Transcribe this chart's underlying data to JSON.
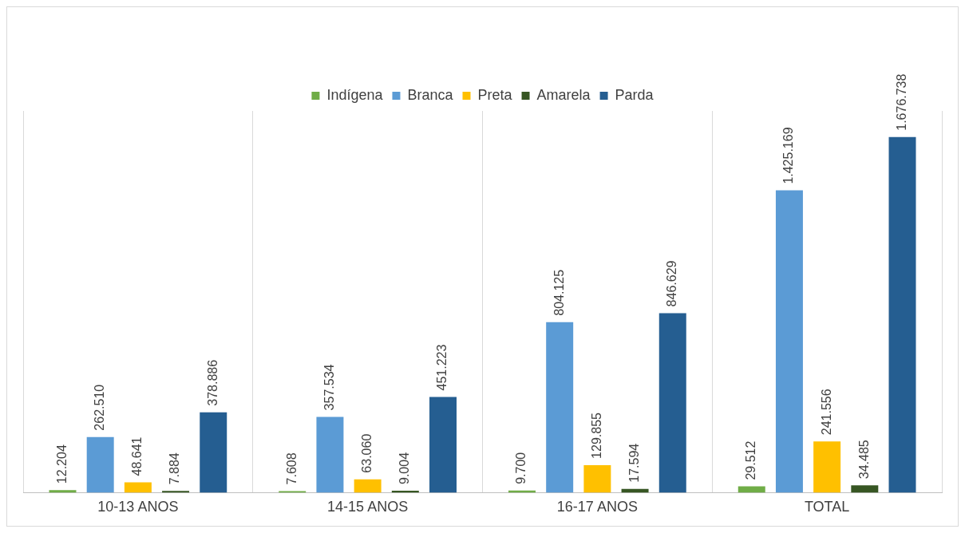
{
  "chart_data": {
    "type": "bar",
    "categories": [
      "10-13 ANOS",
      "14-15 ANOS",
      "16-17 ANOS",
      "TOTAL"
    ],
    "series": [
      {
        "name": "Indígena",
        "color": "#70ad47",
        "values": [
          12204,
          7608,
          9700,
          29512
        ],
        "value_labels": [
          "12.204",
          "7.608",
          "9.700",
          "29.512"
        ]
      },
      {
        "name": "Branca",
        "color": "#5b9bd5",
        "values": [
          262510,
          357534,
          804125,
          1425169
        ],
        "value_labels": [
          "262.510",
          "357.534",
          "804.125",
          "1.425.169"
        ]
      },
      {
        "name": "Preta",
        "color": "#ffc000",
        "values": [
          48641,
          63060,
          129855,
          241556
        ],
        "value_labels": [
          "48.641",
          "63.060",
          "129.855",
          "241.556"
        ]
      },
      {
        "name": "Amarela",
        "color": "#375623",
        "values": [
          7884,
          9004,
          17594,
          34485
        ],
        "value_labels": [
          "7.884",
          "9.004",
          "17.594",
          "34.485"
        ]
      },
      {
        "name": "Parda",
        "color": "#255e91",
        "values": [
          378886,
          451223,
          846629,
          1676738
        ],
        "value_labels": [
          "378.886",
          "451.223",
          "846.629",
          "1.676.738"
        ]
      }
    ],
    "grid": "x",
    "legend": "top",
    "tick_labels": "x"
  }
}
